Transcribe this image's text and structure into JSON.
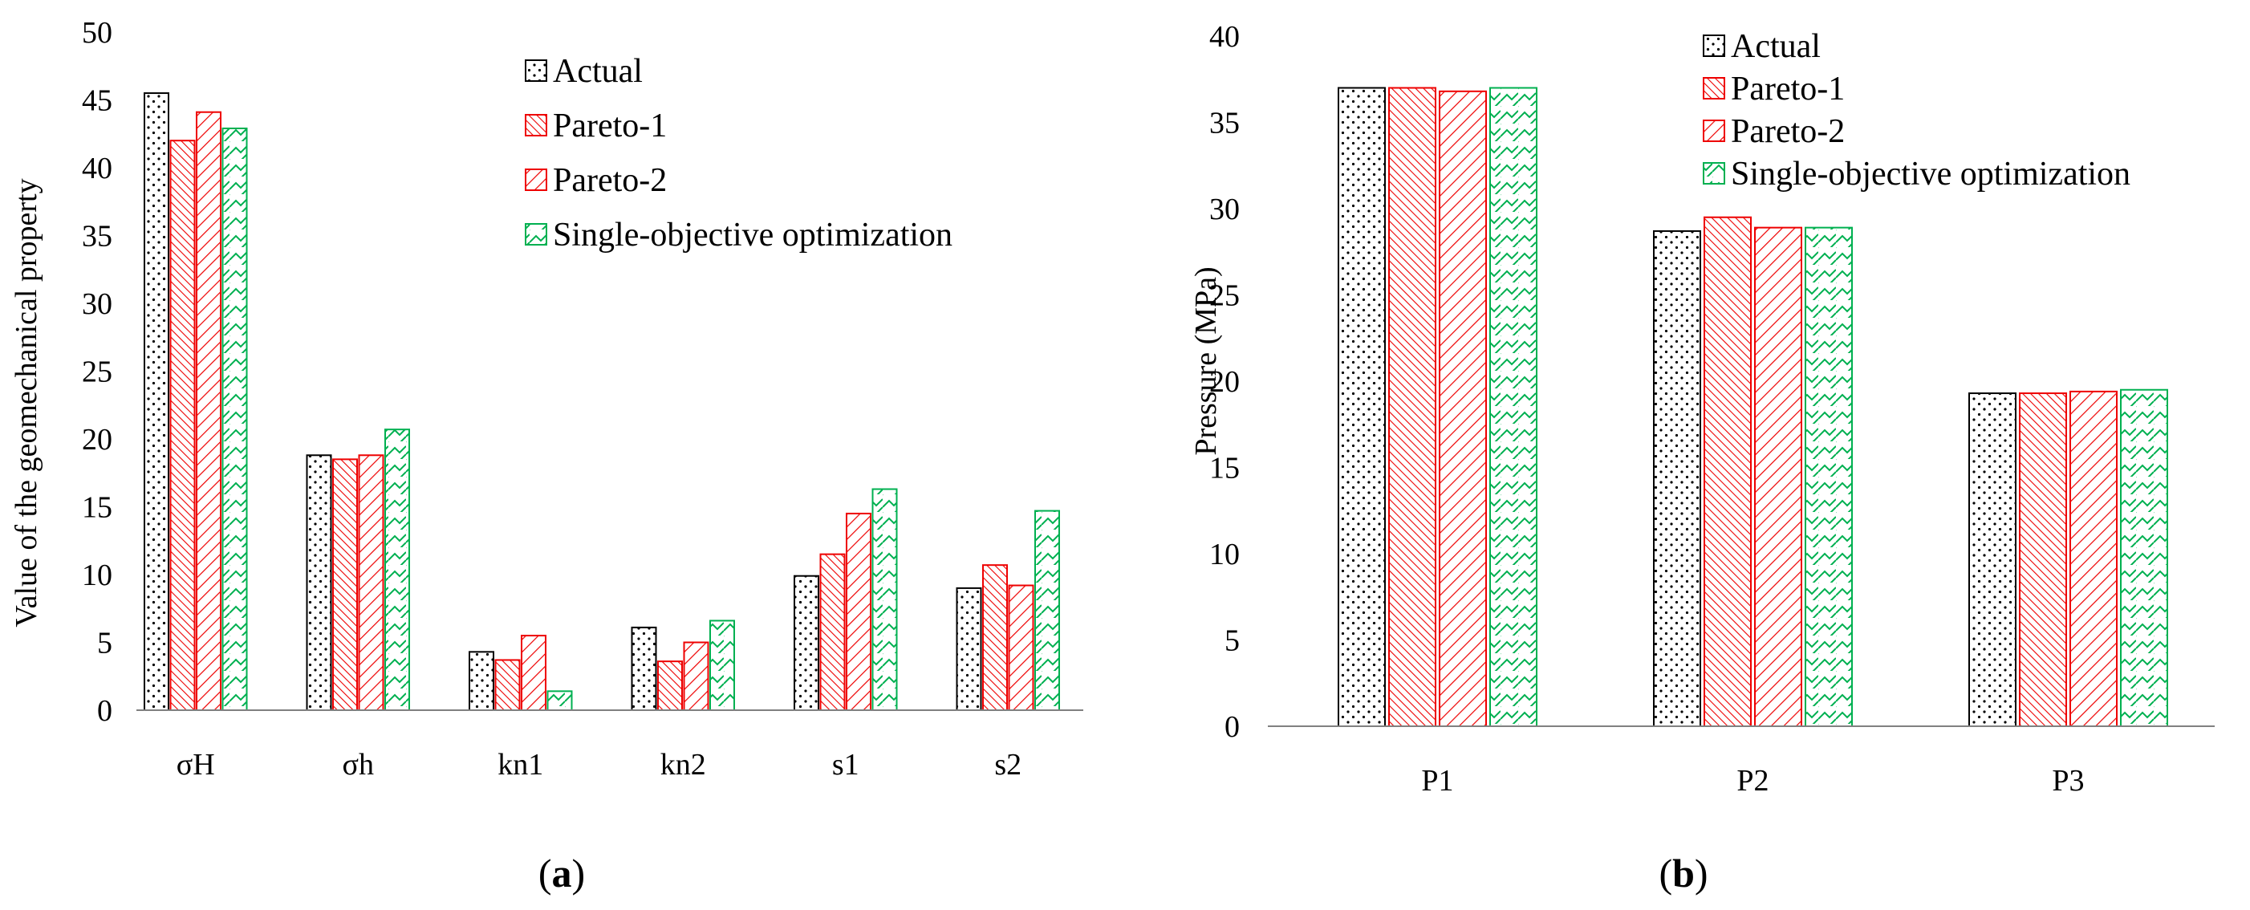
{
  "colors": {
    "actual": "#000000",
    "pareto1": "#ee0000",
    "pareto2": "#ee0000",
    "single": "#00b050",
    "axis": "#808080"
  },
  "chart_data": [
    {
      "type": "bar",
      "panel_label": "a",
      "title": "",
      "xlabel": "",
      "ylabel": "Value of the geomechanical property",
      "ylim": [
        0,
        50
      ],
      "yticks": [
        "0",
        "5",
        "10",
        "15",
        "20",
        "25",
        "30",
        "35",
        "40",
        "45",
        "50"
      ],
      "categories": [
        "σH",
        "σh",
        "kn1",
        "kn2",
        "s1",
        "s2"
      ],
      "legend_position": "top-right",
      "series": [
        {
          "name": "Actual",
          "pattern": "dots",
          "values": [
            45.5,
            18.8,
            4.3,
            6.1,
            9.9,
            9.0
          ]
        },
        {
          "name": "Pareto-1",
          "pattern": "dense-diagonal",
          "values": [
            42.0,
            18.5,
            3.7,
            3.6,
            11.5,
            10.7
          ]
        },
        {
          "name": "Pareto-2",
          "pattern": "wide-diagonal",
          "values": [
            44.1,
            18.8,
            5.5,
            5.0,
            14.5,
            9.2
          ]
        },
        {
          "name": "Single-objective optimization",
          "pattern": "zigzag",
          "values": [
            42.9,
            20.7,
            1.4,
            6.6,
            16.3,
            14.7
          ]
        }
      ]
    },
    {
      "type": "bar",
      "panel_label": "b",
      "title": "",
      "xlabel": "",
      "ylabel": "Pressure (MPa)",
      "ylim": [
        0,
        40
      ],
      "yticks": [
        "0",
        "5",
        "10",
        "15",
        "20",
        "25",
        "30",
        "35",
        "40"
      ],
      "categories": [
        "P1",
        "P2",
        "P3"
      ],
      "legend_position": "top-right",
      "series": [
        {
          "name": "Actual",
          "pattern": "dots",
          "values": [
            37.0,
            28.7,
            19.3
          ]
        },
        {
          "name": "Pareto-1",
          "pattern": "dense-diagonal",
          "values": [
            37.0,
            29.5,
            19.3
          ]
        },
        {
          "name": "Pareto-2",
          "pattern": "wide-diagonal",
          "values": [
            36.8,
            28.9,
            19.4
          ]
        },
        {
          "name": "Single-objective optimization",
          "pattern": "zigzag",
          "values": [
            37.0,
            28.9,
            19.5
          ]
        }
      ]
    }
  ],
  "captions": {
    "a": {
      "open": "(",
      "label": "a",
      "close": ")"
    },
    "b": {
      "open": "(",
      "label": "b",
      "close": ")"
    }
  }
}
